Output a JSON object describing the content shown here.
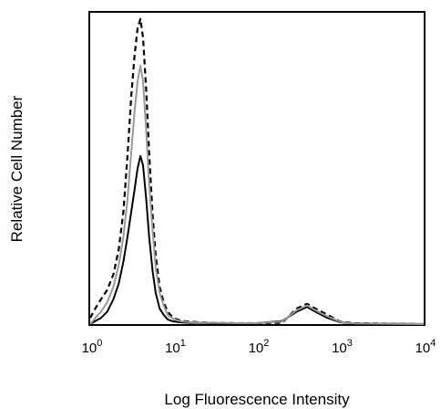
{
  "chart_data": {
    "type": "line",
    "title": "",
    "xlabel": "Log Fluorescence Intensity",
    "ylabel": "Relative Cell Number",
    "xscale": "log",
    "xlim": [
      1,
      10000
    ],
    "ylim": [
      0,
      1
    ],
    "grid": false,
    "x_ticks": [
      {
        "value": 1,
        "base": "10",
        "exp": "0"
      },
      {
        "value": 10,
        "base": "10",
        "exp": "1"
      },
      {
        "value": 100,
        "base": "10",
        "exp": "2"
      },
      {
        "value": 1000,
        "base": "10",
        "exp": "3"
      },
      {
        "value": 10000,
        "base": "10",
        "exp": "4"
      }
    ],
    "series": [
      {
        "style": "dashed",
        "color": "#000000",
        "x": [
          1.0,
          1.15,
          1.35,
          1.6,
          1.9,
          2.2,
          2.5,
          2.8,
          3.1,
          3.4,
          3.7,
          4.0,
          4.3,
          4.7,
          5.1,
          5.6,
          6.1,
          6.8,
          7.6,
          8.5,
          9.5,
          11,
          13,
          16,
          20,
          30,
          60,
          100,
          200,
          300,
          400,
          500,
          700,
          1000,
          1500,
          10000
        ],
        "y": [
          0.02,
          0.05,
          0.08,
          0.11,
          0.16,
          0.24,
          0.36,
          0.54,
          0.73,
          0.86,
          0.95,
          0.98,
          0.92,
          0.75,
          0.55,
          0.35,
          0.22,
          0.12,
          0.07,
          0.04,
          0.025,
          0.015,
          0.01,
          0.008,
          0.006,
          0.004,
          0.003,
          0.003,
          0.004,
          0.05,
          0.065,
          0.05,
          0.03,
          0.008,
          0.003,
          0.0
        ]
      },
      {
        "style": "solid",
        "color": "#000000",
        "x": [
          1.0,
          1.15,
          1.35,
          1.6,
          1.9,
          2.2,
          2.5,
          2.8,
          3.1,
          3.4,
          3.7,
          4.0,
          4.3,
          4.7,
          5.1,
          5.6,
          6.1,
          6.8,
          7.6,
          8.5,
          9.5,
          11,
          13,
          16,
          20,
          30,
          60,
          100,
          200,
          300,
          400,
          500,
          700,
          1000,
          1500,
          10000
        ],
        "y": [
          0.0,
          0.01,
          0.02,
          0.04,
          0.08,
          0.13,
          0.2,
          0.28,
          0.36,
          0.43,
          0.5,
          0.54,
          0.51,
          0.4,
          0.28,
          0.17,
          0.1,
          0.05,
          0.03,
          0.015,
          0.01,
          0.007,
          0.005,
          0.004,
          0.004,
          0.003,
          0.003,
          0.003,
          0.01,
          0.04,
          0.055,
          0.04,
          0.02,
          0.006,
          0.002,
          0.0
        ]
      },
      {
        "style": "solid",
        "color": "#999999",
        "x": [
          1.0,
          1.15,
          1.35,
          1.6,
          1.9,
          2.2,
          2.5,
          2.8,
          3.1,
          3.4,
          3.7,
          4.0,
          4.3,
          4.7,
          5.1,
          5.6,
          6.1,
          6.8,
          7.6,
          8.5,
          9.5,
          11,
          13,
          16,
          20,
          30,
          60,
          100,
          200,
          300,
          400,
          500,
          700,
          1000,
          1500,
          10000
        ],
        "y": [
          0.0,
          0.02,
          0.04,
          0.07,
          0.12,
          0.19,
          0.28,
          0.4,
          0.55,
          0.68,
          0.78,
          0.83,
          0.78,
          0.62,
          0.45,
          0.3,
          0.18,
          0.1,
          0.06,
          0.03,
          0.02,
          0.012,
          0.008,
          0.006,
          0.005,
          0.004,
          0.003,
          0.003,
          0.008,
          0.045,
          0.06,
          0.045,
          0.025,
          0.007,
          0.002,
          0.0
        ]
      }
    ]
  }
}
